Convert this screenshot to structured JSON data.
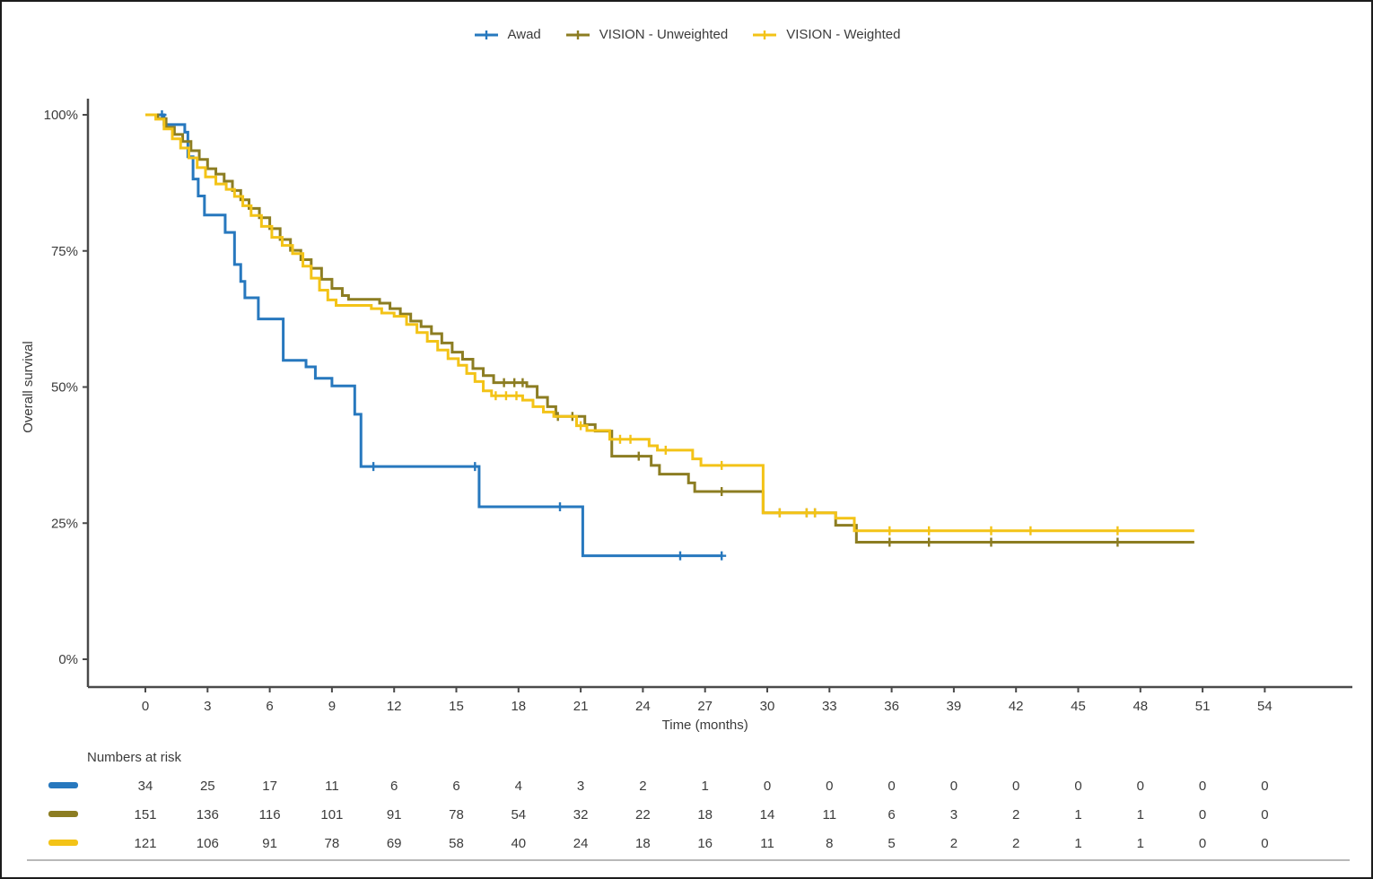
{
  "page": {
    "background": "#ffffff",
    "border_color": "#1c1c1c"
  },
  "legend": {
    "items": [
      {
        "label": "Awad",
        "color": "#2778be"
      },
      {
        "label": "VISION - Unweighted",
        "color": "#8c7d22"
      },
      {
        "label": "VISION - Weighted",
        "color": "#f3c317"
      }
    ]
  },
  "chart_data": {
    "type": "line",
    "subtype": "kaplan-meier-step-function",
    "title": "",
    "xlabel": "Time (months)",
    "ylabel": "Overall survival",
    "x_ticks": [
      0,
      3,
      6,
      9,
      12,
      15,
      18,
      21,
      24,
      27,
      30,
      33,
      36,
      39,
      42,
      45,
      48,
      51,
      54
    ],
    "y_ticks": [
      {
        "label": "0%",
        "value": 0
      },
      {
        "label": "25%",
        "value": 25
      },
      {
        "label": "50%",
        "value": 50
      },
      {
        "label": "75%",
        "value": 75
      },
      {
        "label": "100%",
        "value": 100
      }
    ],
    "xlim": [
      0,
      57
    ],
    "ylim": [
      0,
      100
    ],
    "grid": false,
    "legend_position": "top",
    "series": [
      {
        "name": "Awad",
        "color": "#2778be",
        "points": [
          [
            0,
            100
          ],
          [
            0.9,
            98.2
          ],
          [
            1.9,
            96.8
          ],
          [
            2.05,
            92.3
          ],
          [
            2.3,
            88.2
          ],
          [
            2.55,
            85.1
          ],
          [
            2.85,
            81.6
          ],
          [
            3.85,
            78.4
          ],
          [
            4.3,
            72.5
          ],
          [
            4.6,
            69.4
          ],
          [
            4.8,
            66.4
          ],
          [
            5.45,
            62.5
          ],
          [
            6.65,
            54.9
          ],
          [
            7.75,
            53.7
          ],
          [
            8.2,
            51.6
          ],
          [
            9.0,
            50.2
          ],
          [
            10.1,
            45.0
          ],
          [
            10.4,
            35.4
          ],
          [
            16.1,
            28.0
          ],
          [
            21.1,
            19.0
          ],
          [
            27.8,
            19.0
          ]
        ],
        "censor_times": [
          0.8,
          11.0,
          15.9,
          20.0,
          25.8,
          27.8
        ]
      },
      {
        "name": "VISION - Unweighted",
        "color": "#8c7d22",
        "points": [
          [
            0,
            100
          ],
          [
            0.6,
            99.3
          ],
          [
            1.0,
            97.7
          ],
          [
            1.4,
            96.4
          ],
          [
            1.8,
            95.1
          ],
          [
            2.2,
            93.4
          ],
          [
            2.6,
            91.8
          ],
          [
            3.0,
            90.1
          ],
          [
            3.4,
            89.1
          ],
          [
            3.8,
            87.8
          ],
          [
            4.2,
            86.1
          ],
          [
            4.6,
            84.4
          ],
          [
            5.0,
            82.8
          ],
          [
            5.5,
            81.1
          ],
          [
            6.0,
            79.1
          ],
          [
            6.5,
            77.1
          ],
          [
            7.0,
            75.1
          ],
          [
            7.5,
            73.4
          ],
          [
            8.0,
            71.8
          ],
          [
            8.5,
            69.8
          ],
          [
            9.0,
            68.1
          ],
          [
            9.5,
            66.8
          ],
          [
            9.8,
            66.1
          ],
          [
            11.3,
            65.4
          ],
          [
            11.8,
            64.4
          ],
          [
            12.3,
            63.4
          ],
          [
            12.8,
            62.1
          ],
          [
            13.3,
            61.1
          ],
          [
            13.8,
            59.8
          ],
          [
            14.3,
            58.1
          ],
          [
            14.8,
            56.4
          ],
          [
            15.3,
            55.1
          ],
          [
            15.8,
            53.4
          ],
          [
            16.3,
            52.1
          ],
          [
            16.8,
            50.8
          ],
          [
            18.4,
            50.1
          ],
          [
            18.9,
            48.1
          ],
          [
            19.4,
            46.4
          ],
          [
            19.8,
            44.6
          ],
          [
            21.2,
            43.1
          ],
          [
            21.7,
            41.9
          ],
          [
            22.5,
            37.3
          ],
          [
            24.4,
            35.6
          ],
          [
            24.8,
            34.0
          ],
          [
            26.2,
            32.4
          ],
          [
            26.5,
            30.8
          ],
          [
            29.8,
            26.9
          ],
          [
            33.3,
            24.6
          ],
          [
            34.3,
            21.5
          ],
          [
            50.6,
            21.5
          ]
        ],
        "censor_times": [
          17.3,
          17.8,
          18.2,
          19.9,
          20.6,
          23.8,
          27.8,
          30.6,
          31.9,
          32.3,
          35.9,
          37.8,
          40.8,
          46.9
        ]
      },
      {
        "name": "VISION - Weighted",
        "color": "#f3c317",
        "points": [
          [
            0,
            100
          ],
          [
            0.5,
            99.2
          ],
          [
            0.9,
            97.4
          ],
          [
            1.3,
            95.6
          ],
          [
            1.7,
            93.9
          ],
          [
            2.1,
            92.1
          ],
          [
            2.5,
            90.3
          ],
          [
            2.9,
            88.6
          ],
          [
            3.4,
            87.3
          ],
          [
            3.9,
            86.3
          ],
          [
            4.3,
            85.0
          ],
          [
            4.7,
            83.3
          ],
          [
            5.1,
            81.5
          ],
          [
            5.6,
            79.5
          ],
          [
            6.1,
            77.5
          ],
          [
            6.6,
            76.0
          ],
          [
            7.1,
            74.5
          ],
          [
            7.6,
            72.2
          ],
          [
            8.0,
            70.0
          ],
          [
            8.4,
            67.8
          ],
          [
            8.8,
            66.0
          ],
          [
            9.2,
            65.0
          ],
          [
            10.9,
            64.4
          ],
          [
            11.4,
            63.6
          ],
          [
            12.0,
            63.0
          ],
          [
            12.6,
            61.5
          ],
          [
            13.1,
            60.0
          ],
          [
            13.6,
            58.4
          ],
          [
            14.1,
            56.8
          ],
          [
            14.6,
            55.2
          ],
          [
            15.1,
            54.0
          ],
          [
            15.5,
            52.5
          ],
          [
            15.9,
            51.0
          ],
          [
            16.3,
            49.3
          ],
          [
            16.7,
            48.4
          ],
          [
            18.2,
            47.6
          ],
          [
            18.7,
            46.4
          ],
          [
            19.2,
            45.4
          ],
          [
            19.7,
            44.6
          ],
          [
            20.8,
            42.9
          ],
          [
            21.3,
            42.0
          ],
          [
            22.4,
            40.4
          ],
          [
            24.3,
            39.2
          ],
          [
            24.7,
            38.4
          ],
          [
            26.4,
            36.8
          ],
          [
            26.8,
            35.6
          ],
          [
            29.8,
            26.9
          ],
          [
            33.3,
            25.9
          ],
          [
            34.2,
            23.6
          ],
          [
            50.6,
            23.6
          ]
        ],
        "censor_times": [
          16.9,
          17.4,
          17.9,
          21.0,
          22.9,
          23.4,
          25.1,
          27.8,
          30.6,
          31.9,
          32.3,
          35.9,
          37.8,
          40.8,
          42.7,
          46.9
        ]
      }
    ]
  },
  "risk_table": {
    "header": "Numbers at risk",
    "time_points": [
      0,
      3,
      6,
      9,
      12,
      15,
      18,
      21,
      24,
      27,
      30,
      33,
      36,
      39,
      42,
      45,
      48,
      51,
      54
    ],
    "rows": [
      {
        "series": "Awad",
        "color": "#2778be",
        "values": [
          34,
          25,
          17,
          11,
          6,
          6,
          4,
          3,
          2,
          1,
          0,
          0,
          0,
          0,
          0,
          0,
          0,
          0,
          0
        ]
      },
      {
        "series": "VISION - Unweighted",
        "color": "#8c7d22",
        "values": [
          151,
          136,
          116,
          101,
          91,
          78,
          54,
          32,
          22,
          18,
          14,
          11,
          6,
          3,
          2,
          1,
          1,
          0,
          0
        ]
      },
      {
        "series": "VISION - Weighted",
        "color": "#f3c317",
        "values": [
          121,
          106,
          91,
          78,
          69,
          58,
          40,
          24,
          18,
          16,
          11,
          8,
          5,
          2,
          2,
          1,
          1,
          0,
          0
        ]
      }
    ]
  }
}
